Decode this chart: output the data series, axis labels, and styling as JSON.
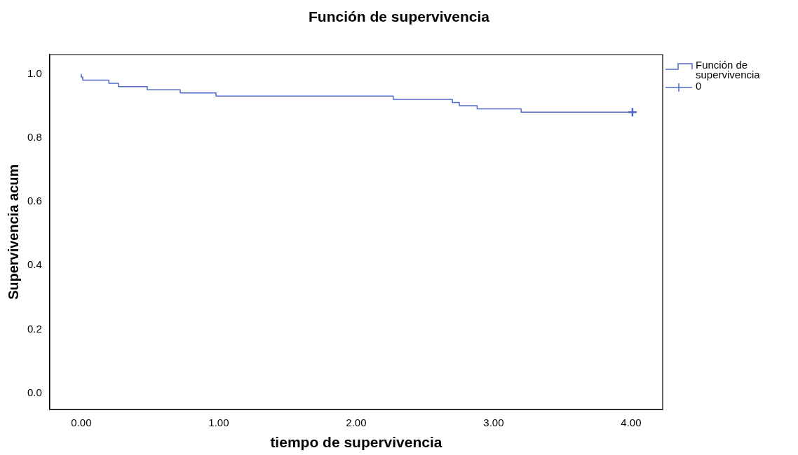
{
  "chart_data": {
    "type": "step",
    "title": "Función de supervivencia",
    "xlabel": "tiempo de supervivencia",
    "ylabel": "Supervivencia acum",
    "series": [
      {
        "name": "Función de supervivencia",
        "type": "step",
        "color": "#5068c4",
        "x": [
          0,
          0.01,
          0.2,
          0.27,
          0.48,
          0.72,
          0.98,
          2.27,
          2.7,
          2.75,
          2.88,
          3.2,
          3.81,
          4.01
        ],
        "values": [
          1.0,
          0.99,
          0.98,
          0.97,
          0.96,
          0.95,
          0.94,
          0.93,
          0.92,
          0.91,
          0.9,
          0.89,
          0.88,
          0.88
        ]
      },
      {
        "name": "0",
        "type": "scatter",
        "marker": "cross",
        "color": "#5068c4",
        "x": [
          4.01
        ],
        "values": [
          0.88
        ]
      }
    ],
    "xlim": [
      -0.23,
      4.23
    ],
    "ylim": [
      -0.05,
      1.06
    ],
    "xticks": [
      {
        "value": 0,
        "label": "0.00"
      },
      {
        "value": 1,
        "label": "1.00"
      },
      {
        "value": 2,
        "label": "2.00"
      },
      {
        "value": 3,
        "label": "3.00"
      },
      {
        "value": 4,
        "label": "4.00"
      }
    ],
    "yticks": [
      {
        "value": 0,
        "label": "0.0"
      },
      {
        "value": 0.2,
        "label": "0.2"
      },
      {
        "value": 0.4,
        "label": "0.4"
      },
      {
        "value": 0.6,
        "label": "0.6"
      },
      {
        "value": 0.8,
        "label": "0.8"
      },
      {
        "value": 1.0,
        "label": "1.0"
      }
    ],
    "grid": false,
    "legend": "top right"
  }
}
